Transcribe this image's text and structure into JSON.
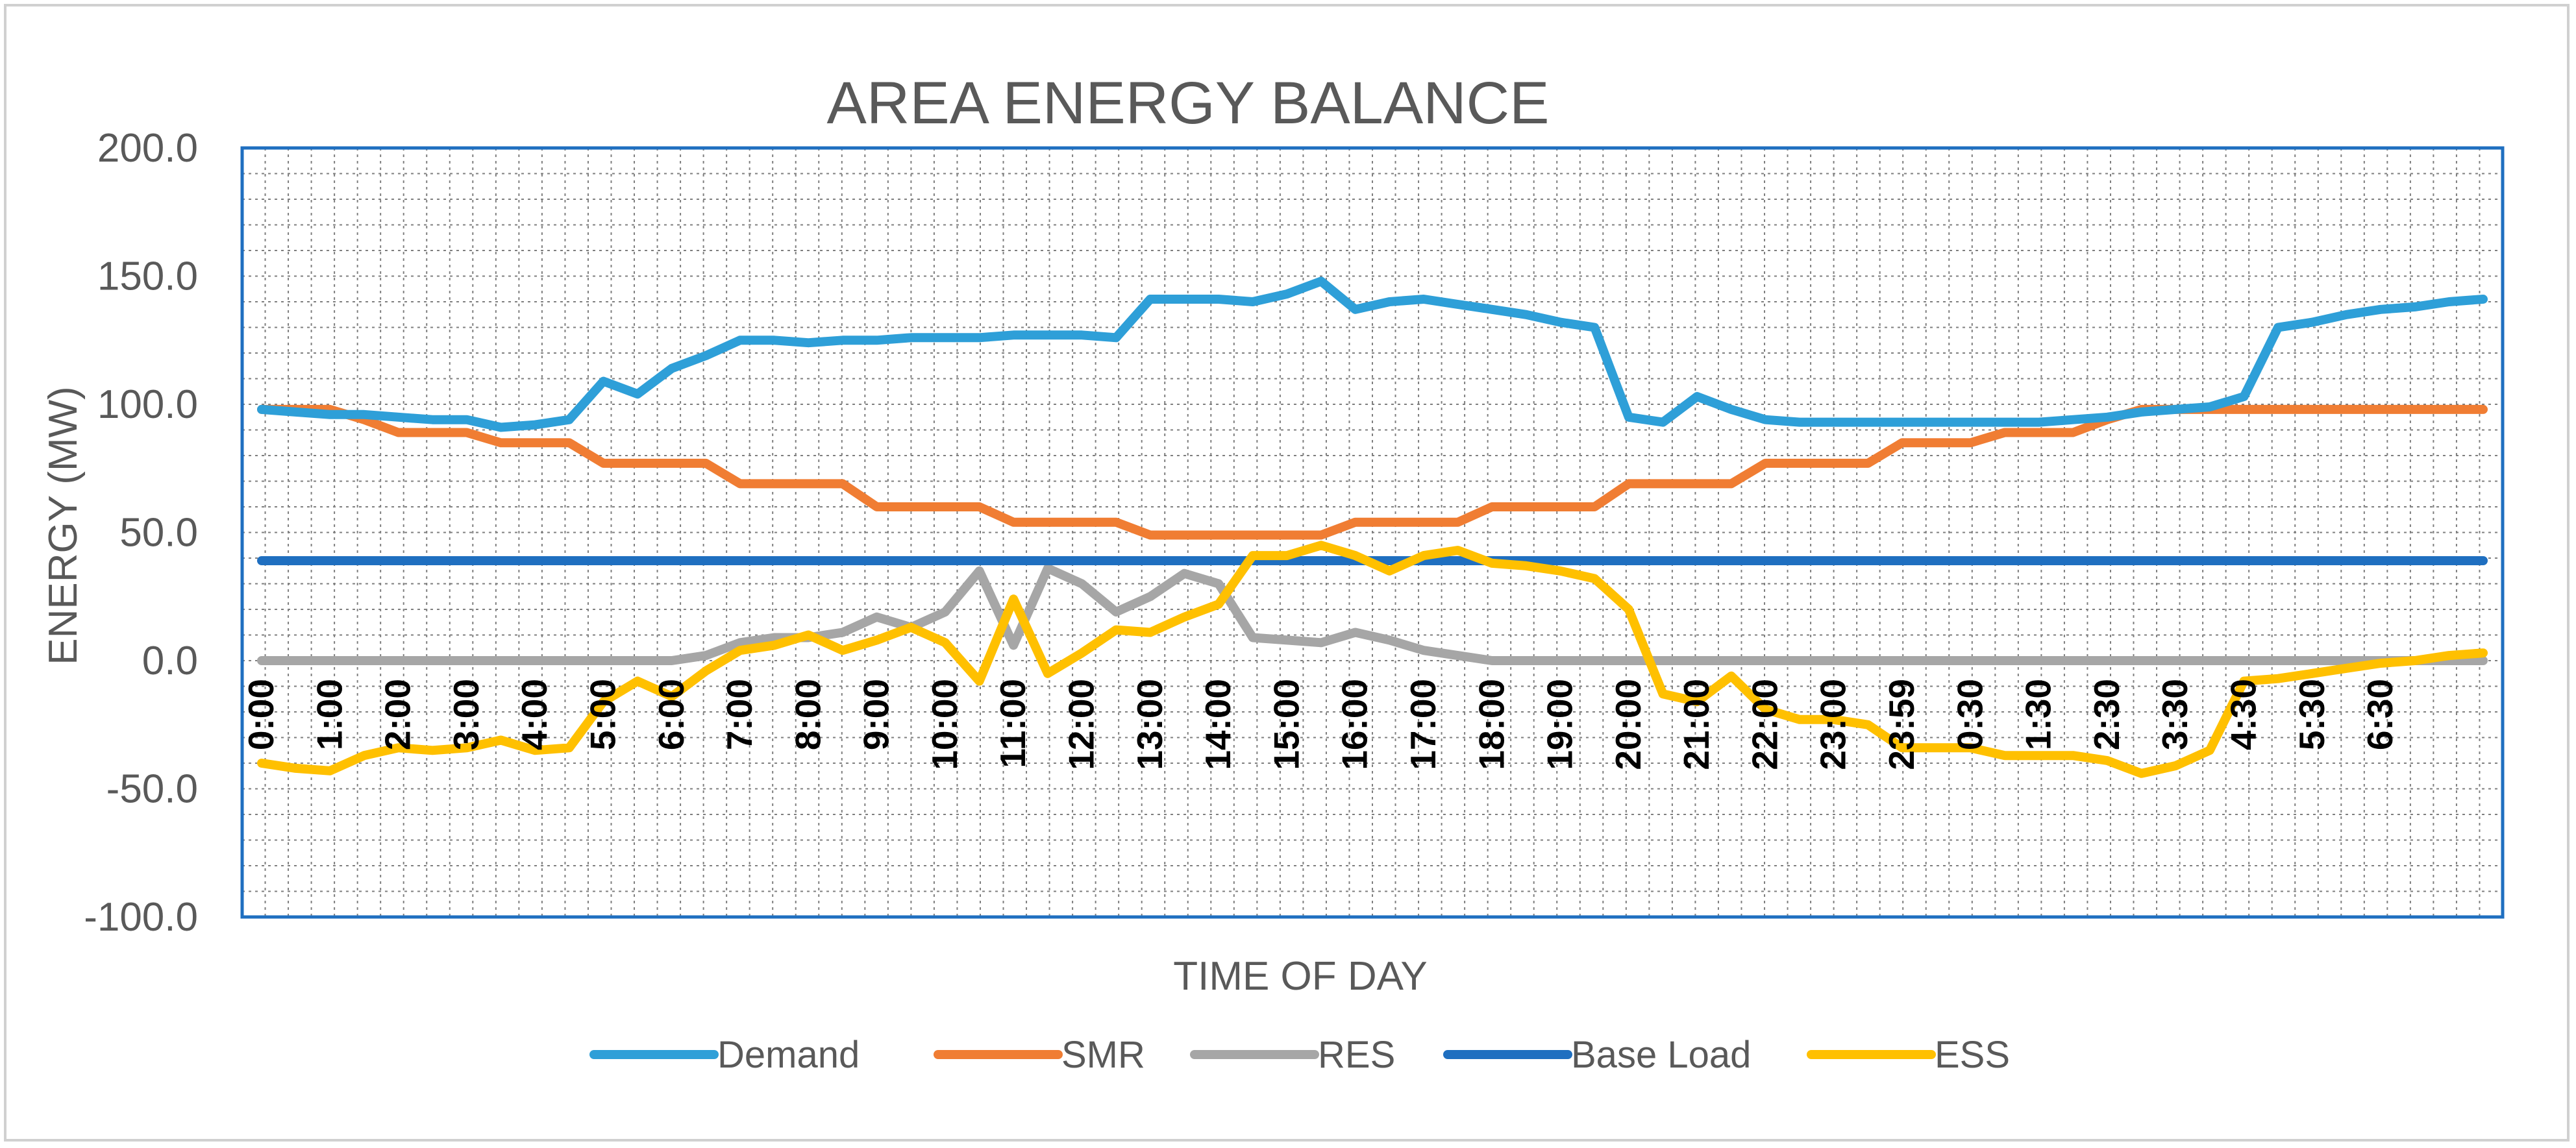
{
  "chart_data": {
    "type": "line",
    "title": "AREA ENERGY BALANCE",
    "xlabel": "TIME OF DAY",
    "ylabel": "ENERGY (MW)",
    "ylim": [
      -100,
      200
    ],
    "ytick_step": 50,
    "grid": true,
    "legend_position": "bottom",
    "n_points": 66,
    "x_labels": [
      {
        "i": 0,
        "label": "0:00"
      },
      {
        "i": 2,
        "label": "1:00"
      },
      {
        "i": 4,
        "label": "2:00"
      },
      {
        "i": 6,
        "label": "3:00"
      },
      {
        "i": 8,
        "label": "4:00"
      },
      {
        "i": 10,
        "label": "5:00"
      },
      {
        "i": 12,
        "label": "6:00"
      },
      {
        "i": 14,
        "label": "7:00"
      },
      {
        "i": 16,
        "label": "8:00"
      },
      {
        "i": 18,
        "label": "9:00"
      },
      {
        "i": 20,
        "label": "10:00"
      },
      {
        "i": 22,
        "label": "11:00"
      },
      {
        "i": 24,
        "label": "12:00"
      },
      {
        "i": 26,
        "label": "13:00"
      },
      {
        "i": 28,
        "label": "14:00"
      },
      {
        "i": 30,
        "label": "15:00"
      },
      {
        "i": 32,
        "label": "16:00"
      },
      {
        "i": 34,
        "label": "17:00"
      },
      {
        "i": 36,
        "label": "18:00"
      },
      {
        "i": 38,
        "label": "19:00"
      },
      {
        "i": 40,
        "label": "20:00"
      },
      {
        "i": 42,
        "label": "21:00"
      },
      {
        "i": 44,
        "label": "22:00"
      },
      {
        "i": 46,
        "label": "23:00"
      },
      {
        "i": 48,
        "label": "23:59"
      },
      {
        "i": 50,
        "label": "0:30"
      },
      {
        "i": 52,
        "label": "1:30"
      },
      {
        "i": 54,
        "label": "2:30"
      },
      {
        "i": 56,
        "label": "3:30"
      },
      {
        "i": 58,
        "label": "4:30"
      },
      {
        "i": 60,
        "label": "5:30"
      },
      {
        "i": 62,
        "label": "6:30"
      }
    ],
    "series": [
      {
        "name": "Demand",
        "color": "#2e9fd8",
        "values": [
          98,
          97,
          96,
          96,
          95,
          94,
          94,
          91,
          92,
          94,
          109,
          104,
          114,
          119,
          125,
          125,
          124,
          125,
          125,
          126,
          126,
          126,
          127,
          127,
          127,
          126,
          141,
          141,
          141,
          140,
          143,
          148,
          137,
          140,
          141,
          139,
          137,
          135,
          132,
          130,
          95,
          93,
          103,
          98,
          94,
          93,
          93,
          93,
          93,
          93,
          93,
          93,
          93,
          94,
          95,
          97,
          98,
          99,
          103,
          130,
          132,
          135,
          137,
          138,
          140,
          141
        ]
      },
      {
        "name": "SMR",
        "color": "#f07d33",
        "values": [
          98,
          98,
          98,
          94,
          89,
          89,
          89,
          85,
          85,
          85,
          77,
          77,
          77,
          77,
          69,
          69,
          69,
          69,
          60,
          60,
          60,
          60,
          54,
          54,
          54,
          54,
          49,
          49,
          49,
          49,
          49,
          49,
          54,
          54,
          54,
          54,
          60,
          60,
          60,
          60,
          69,
          69,
          69,
          69,
          77,
          77,
          77,
          77,
          85,
          85,
          85,
          89,
          89,
          89,
          94,
          98,
          98,
          98,
          98,
          98,
          98,
          98,
          98,
          98,
          98,
          98
        ]
      },
      {
        "name": "RES",
        "color": "#a6a6a6",
        "values": [
          0,
          0,
          0,
          0,
          0,
          0,
          0,
          0,
          0,
          0,
          0,
          0,
          0,
          2,
          7,
          9,
          9,
          11,
          17,
          13,
          19,
          35,
          6,
          36,
          30,
          19,
          25,
          34,
          30,
          9,
          8,
          7,
          11,
          8,
          4,
          2,
          0,
          0,
          0,
          0,
          0,
          0,
          0,
          0,
          0,
          0,
          0,
          0,
          0,
          0,
          0,
          0,
          0,
          0,
          0,
          0,
          0,
          0,
          0,
          0,
          0,
          0,
          0,
          0,
          0,
          0
        ]
      },
      {
        "name": "Base Load",
        "color": "#1f6fc0",
        "values": [
          39,
          39,
          39,
          39,
          39,
          39,
          39,
          39,
          39,
          39,
          39,
          39,
          39,
          39,
          39,
          39,
          39,
          39,
          39,
          39,
          39,
          39,
          39,
          39,
          39,
          39,
          39,
          39,
          39,
          39,
          39,
          39,
          39,
          39,
          39,
          39,
          39,
          39,
          39,
          39,
          39,
          39,
          39,
          39,
          39,
          39,
          39,
          39,
          39,
          39,
          39,
          39,
          39,
          39,
          39,
          39,
          39,
          39,
          39,
          39,
          39,
          39,
          39,
          39,
          39,
          39
        ]
      },
      {
        "name": "ESS",
        "color": "#ffc000",
        "values": [
          -40,
          -42,
          -43,
          -37,
          -34,
          -35,
          -34,
          -31,
          -35,
          -34,
          -16,
          -8,
          -14,
          -4,
          4,
          6,
          10,
          4,
          8,
          13,
          7,
          -8,
          24,
          -5,
          3,
          12,
          11,
          17,
          22,
          41,
          41,
          45,
          41,
          35,
          41,
          43,
          38,
          37,
          35,
          32,
          20,
          -13,
          -16,
          -6,
          -19,
          -23,
          -23,
          -25,
          -34,
          -34,
          -34,
          -37,
          -37,
          -37,
          -39,
          -44,
          -41,
          -35,
          -8,
          -7,
          -5,
          -3,
          -1,
          0,
          2,
          3
        ]
      }
    ]
  }
}
